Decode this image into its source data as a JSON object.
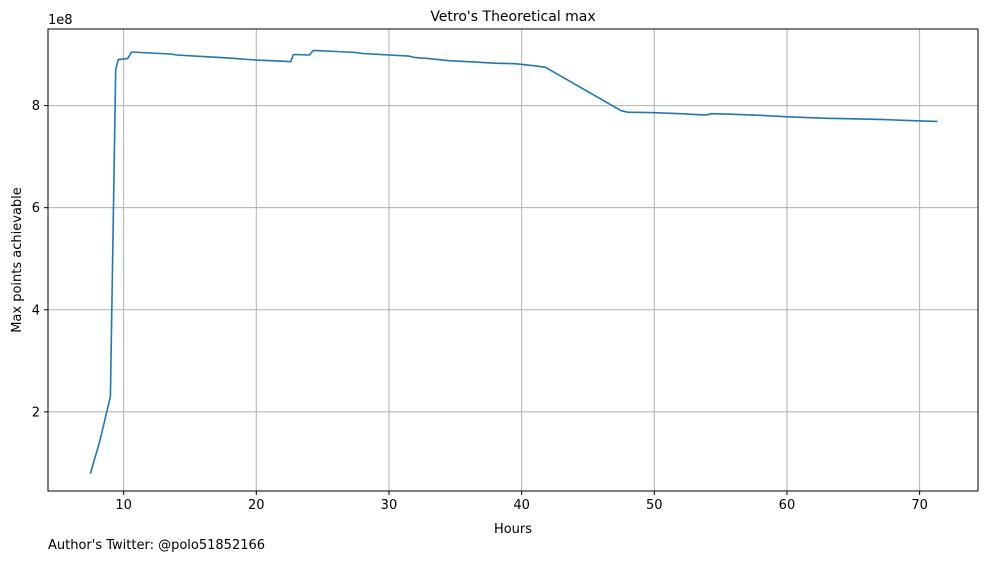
{
  "chart_data": {
    "type": "line",
    "title": "Vetro's Theoretical max",
    "xlabel": "Hours",
    "ylabel": "Max points achievable",
    "offset_text": "1e8",
    "xlim": [
      4.3,
      74.4
    ],
    "ylim": [
      0.45,
      9.5
    ],
    "xticks": [
      10,
      20,
      30,
      40,
      50,
      60,
      70
    ],
    "yticks": [
      2,
      4,
      6,
      8
    ],
    "xtick_labels": [
      "10",
      "20",
      "30",
      "40",
      "50",
      "60",
      "70"
    ],
    "ytick_labels": [
      "2",
      "4",
      "6",
      "8"
    ],
    "grid": true,
    "series": [
      {
        "name": "Max points achievable",
        "color": "#1f77b4",
        "x": [
          7.5,
          8.2,
          9.0,
          9.4,
          9.6,
          10.3,
          10.6,
          12.0,
          13.5,
          14.0,
          16.0,
          18.0,
          20.0,
          22.0,
          22.6,
          22.8,
          24.0,
          24.3,
          26.0,
          27.5,
          28.0,
          30.0,
          31.5,
          32.0,
          33.0,
          34.5,
          36.0,
          38.0,
          39.5,
          41.0,
          41.8,
          47.5,
          48.0,
          50.0,
          52.0,
          53.5,
          54.0,
          54.3,
          56.0,
          58.0,
          60.0,
          62.0,
          63.0,
          65.0,
          67.0,
          69.0,
          71.3
        ],
        "y": [
          0.8,
          1.42,
          2.3,
          8.7,
          8.9,
          8.92,
          9.05,
          9.03,
          9.01,
          8.99,
          8.96,
          8.93,
          8.89,
          8.87,
          8.86,
          9.0,
          8.99,
          9.08,
          9.06,
          9.04,
          9.02,
          8.99,
          8.97,
          8.94,
          8.92,
          8.88,
          8.86,
          8.83,
          8.82,
          8.78,
          8.75,
          7.9,
          7.87,
          7.86,
          7.84,
          7.82,
          7.82,
          7.84,
          7.83,
          7.81,
          7.78,
          7.76,
          7.75,
          7.74,
          7.73,
          7.71,
          7.69
        ]
      }
    ]
  },
  "footer": {
    "credit": "Author's Twitter: @polo51852166"
  }
}
